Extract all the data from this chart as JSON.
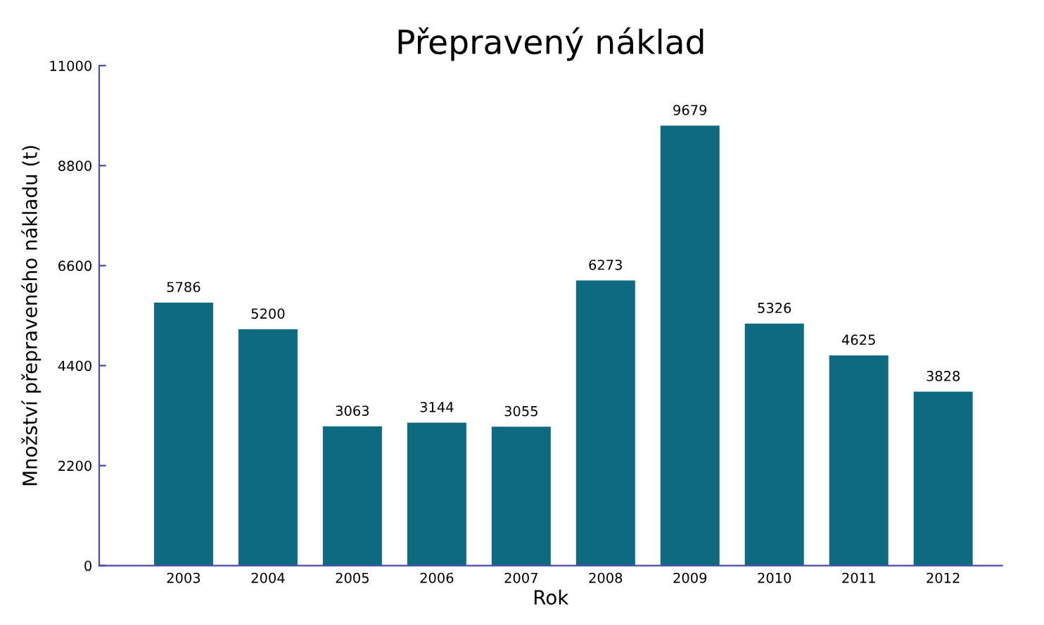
{
  "chart_data": {
    "type": "bar",
    "title": "Přepravený náklad",
    "xlabel": "Rok",
    "ylabel": "Množství přepraveného nákladu (t)",
    "categories": [
      "2003",
      "2004",
      "2005",
      "2006",
      "2007",
      "2008",
      "2009",
      "2010",
      "2011",
      "2012"
    ],
    "values": [
      5786,
      5200,
      3063,
      3144,
      3055,
      6273,
      9679,
      5326,
      4625,
      3828
    ],
    "color": "#0e6a80",
    "ylim": [
      0,
      11000
    ],
    "yticks": [
      0,
      2200,
      4400,
      6600,
      8800,
      11000
    ],
    "data_labels": true,
    "grid": false
  }
}
